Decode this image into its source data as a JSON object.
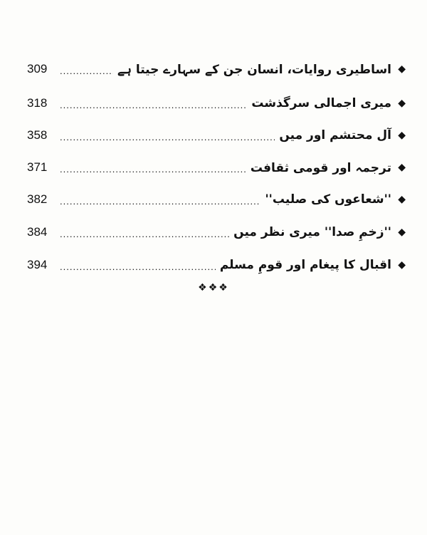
{
  "toc": [
    {
      "title": "اساطیری روایات، انسان جن کے سہارے جیتا ہے",
      "page": "309"
    },
    {
      "title": "میری اجمالی سرگذشت",
      "page": "318"
    },
    {
      "title": "آل محتشم اور میں",
      "page": "358"
    },
    {
      "title": "ترجمہ اور قومی ثقافت",
      "page": "371"
    },
    {
      "title": "''شعاعوں کی صلیب''",
      "page": "382"
    },
    {
      "title": "''زخمِ صدا'' میری نظر میں",
      "page": "384"
    },
    {
      "title": "اقبال کا پیغام اور قومِ مسلم",
      "page": "394"
    }
  ],
  "ornament": "❖❖❖",
  "bullet_icon": "diamond-bullet"
}
